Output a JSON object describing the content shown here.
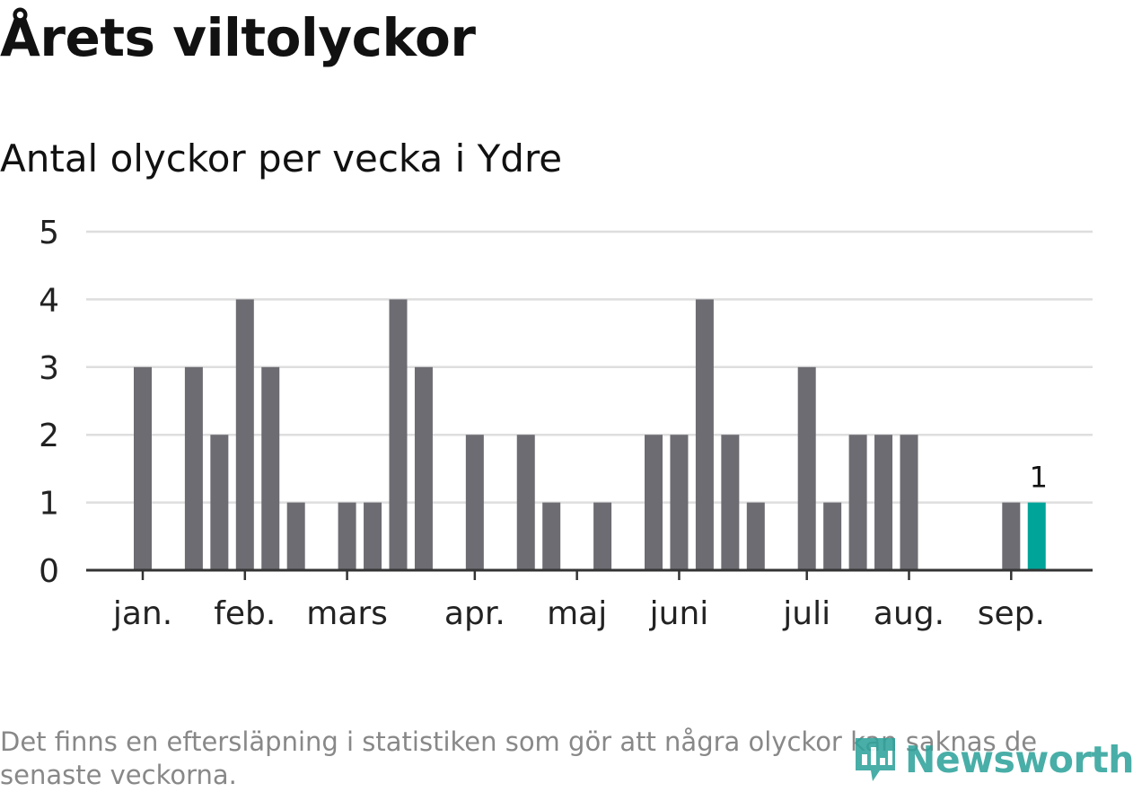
{
  "title": "Årets viltolyckor",
  "subtitle": "Antal olyckor per vecka i Ydre",
  "footnote": "Det finns en eftersläpning i statistiken som gör att några olyckor kan saknas de senaste veckorna.",
  "logo": {
    "text": "Newsworthy",
    "icon": "bar-chart-speech-bubble-icon"
  },
  "colors": {
    "bar": "#6d6c72",
    "highlight": "#00a499",
    "grid": "#dedede",
    "axis": "#333333",
    "text": "#222222"
  },
  "chart_data": {
    "type": "bar",
    "title": "Antal olyckor per vecka i Ydre",
    "xlabel": "",
    "ylabel": "",
    "ylim": [
      0,
      5
    ],
    "yticks": [
      "0",
      "1",
      "2",
      "3",
      "4",
      "5"
    ],
    "grid": true,
    "x_tick_labels": [
      {
        "label": "jan.",
        "week": 2
      },
      {
        "label": "feb.",
        "week": 6
      },
      {
        "label": "mars",
        "week": 10
      },
      {
        "label": "apr.",
        "week": 15
      },
      {
        "label": "maj",
        "week": 19
      },
      {
        "label": "juni",
        "week": 23
      },
      {
        "label": "juli",
        "week": 28
      },
      {
        "label": "aug.",
        "week": 32
      },
      {
        "label": "sep.",
        "week": 36
      }
    ],
    "weeks": [
      1,
      2,
      3,
      4,
      5,
      6,
      7,
      8,
      9,
      10,
      11,
      12,
      13,
      14,
      15,
      16,
      17,
      18,
      19,
      20,
      21,
      22,
      23,
      24,
      25,
      26,
      27,
      28,
      29,
      30,
      31,
      32,
      33,
      34,
      35,
      36,
      37
    ],
    "values": [
      0,
      3,
      0,
      3,
      2,
      4,
      3,
      1,
      0,
      1,
      1,
      4,
      3,
      0,
      2,
      0,
      2,
      1,
      0,
      1,
      0,
      2,
      2,
      4,
      2,
      1,
      0,
      3,
      1,
      2,
      2,
      2,
      0,
      0,
      0,
      1,
      1
    ],
    "highlight_index": 36,
    "data_labels": [
      {
        "index": 36,
        "text": "1"
      }
    ]
  }
}
